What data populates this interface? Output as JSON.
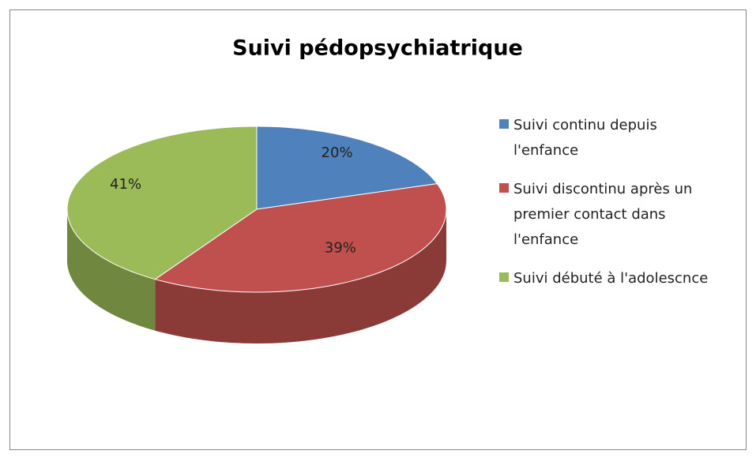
{
  "chart_data": {
    "type": "pie",
    "title": "Suivi pédopsychiatrique",
    "labels": [
      "Suivi continu depuis l'enfance",
      "Suivi discontinu après un premier contact dans l'enfance",
      "Suivi débuté à l'adolescnce"
    ],
    "values": [
      20,
      39,
      41
    ],
    "value_labels": [
      "20%",
      "39%",
      "41%"
    ],
    "colors": [
      "#4f81bd",
      "#c0504d",
      "#9bbb59"
    ],
    "legend": "right"
  }
}
